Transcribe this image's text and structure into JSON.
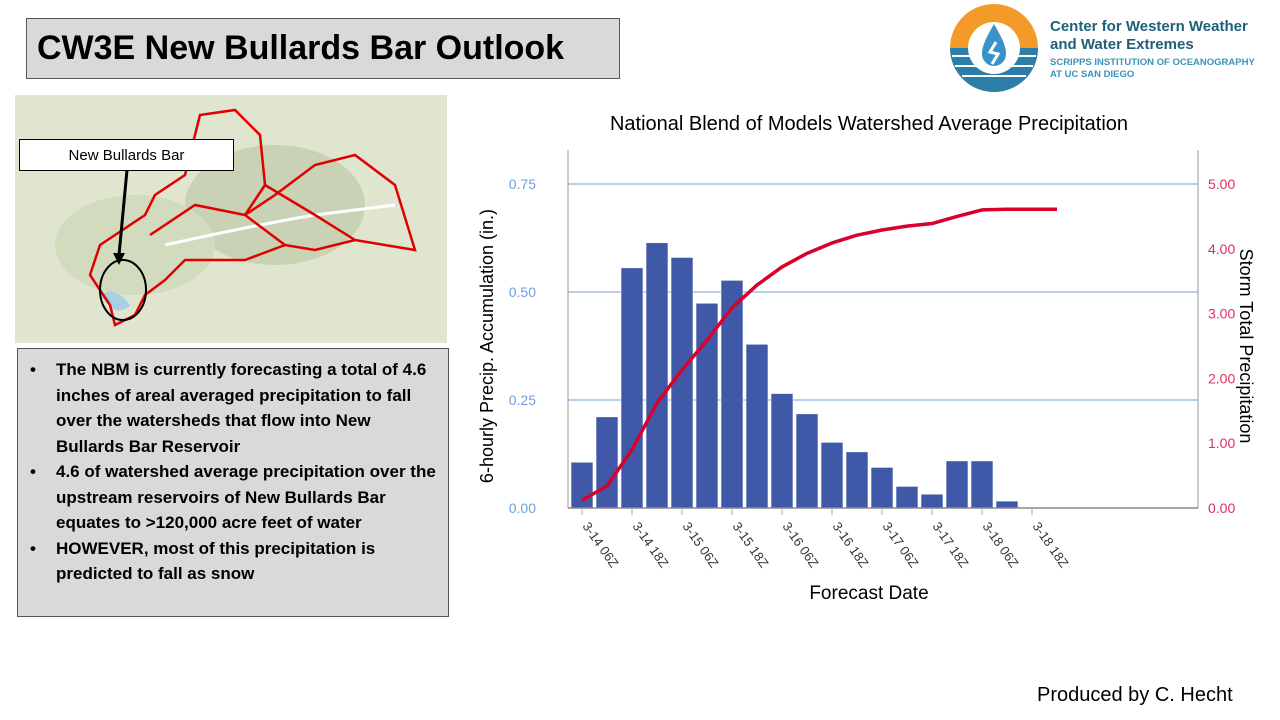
{
  "title": "CW3E New Bullards Bar Outlook",
  "logo": {
    "line1": "Center for Western Weather",
    "line2": "and Water Extremes",
    "line3": "SCRIPPS INSTITUTION OF OCEANOGRAPHY",
    "line4": "AT UC SAN DIEGO"
  },
  "map": {
    "label": "New Bullards Bar"
  },
  "bullets": [
    "The NBM is currently forecasting a total of 4.6 inches of areal averaged precipitation to fall over the watersheds that flow into New Bullards Bar Reservoir",
    "4.6 of watershed average precipitation over the upstream reservoirs of New Bullards Bar equates to >120,000 acre feet of water",
    "HOWEVER, most of this precipitation is predicted to fall as snow"
  ],
  "credit": "Produced by C. Hecht",
  "colors": {
    "bar": "#3f59a8",
    "line": "#d9002b",
    "left_axis": "#6fa0dc",
    "right_axis": "#e0305a",
    "grid": "#8fb0dc"
  },
  "chart_data": {
    "type": "bar+line",
    "title": "National Blend of Models Watershed Average Precipitation",
    "xlabel": "Forecast Date",
    "ylabel": "6-hourly Precip. Accumulation (in.)",
    "y2label": "Storm Total Precipitation",
    "ylim": [
      0,
      0.75
    ],
    "y2lim": [
      0,
      5
    ],
    "yticks": [
      "0.00",
      "0.25",
      "0.50",
      "0.75"
    ],
    "y2ticks": [
      "0.00",
      "1.00",
      "2.00",
      "3.00",
      "4.00",
      "5.00"
    ],
    "xtick_labels": [
      "3-14 06Z",
      "3-14 18Z",
      "3-15 06Z",
      "3-15 18Z",
      "3-16 06Z",
      "3-16 18Z",
      "3-17 06Z",
      "3-17 18Z",
      "3-18 06Z",
      "3-18 18Z"
    ],
    "series": [
      {
        "name": "6-hourly Precip",
        "type": "bar",
        "values": [
          0.106,
          0.211,
          0.556,
          0.614,
          0.58,
          0.474,
          0.527,
          0.379,
          0.265,
          0.218,
          0.152,
          0.13,
          0.094,
          0.05,
          0.032,
          0.109,
          0.109,
          0.016,
          0,
          0
        ]
      },
      {
        "name": "Storm Total",
        "type": "line",
        "values": [
          0.12,
          0.34,
          0.9,
          1.62,
          2.13,
          2.59,
          3.09,
          3.44,
          3.72,
          3.93,
          4.09,
          4.21,
          4.29,
          4.35,
          4.39,
          4.5,
          4.6,
          4.61,
          4.61,
          4.61
        ]
      }
    ]
  }
}
